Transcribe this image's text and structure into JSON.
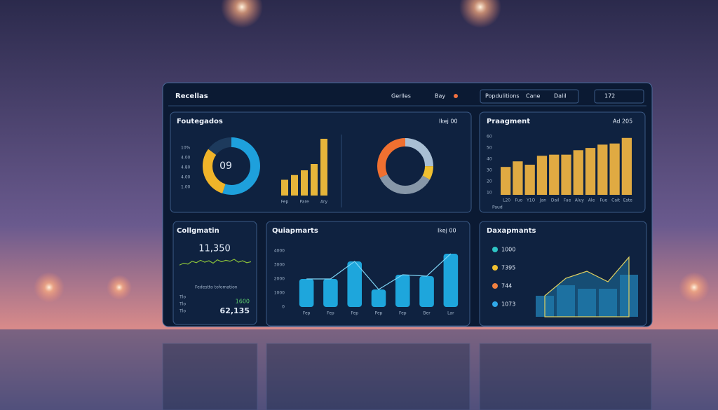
{
  "header": {
    "title": "Recellas",
    "filters": [
      "Gerlles",
      "Bay"
    ],
    "tabs": [
      "Popdulitions",
      "Cane",
      "Dalil"
    ],
    "counter": "172"
  },
  "foutegados": {
    "title": "Foutegados",
    "badge": "Ikej 00",
    "y_labels": [
      "10%",
      "4.00",
      "4.80",
      "4.00",
      "1.00"
    ],
    "donut_label": "09",
    "donut": [
      {
        "color": "#1ea0dc",
        "value": 55
      },
      {
        "color": "#f0b429",
        "value": 30
      },
      {
        "color": "#1d3a5c",
        "value": 15
      }
    ],
    "bars": [
      20,
      26,
      32,
      40,
      72
    ],
    "bar_max": 80,
    "bar_color": "#e6b53a",
    "bar_labels": [
      "Fep",
      "Pare",
      "Ary"
    ],
    "ring": [
      {
        "color": "#a9bfd4",
        "value": 25
      },
      {
        "color": "#f0c030",
        "value": 8
      },
      {
        "color": "#8797a8",
        "value": 35
      },
      {
        "color": "#f07030",
        "value": 32
      }
    ]
  },
  "praagment": {
    "title": "Praagment",
    "badge": "Ad 205",
    "ylim": [
      8,
      62
    ],
    "yticks": [
      60,
      50,
      40,
      30,
      20,
      10
    ],
    "color": "#e0aa42",
    "values": [
      33,
      38,
      35,
      43,
      44,
      44,
      48,
      50,
      53,
      54,
      59
    ],
    "categories": [
      "L20",
      "Fuo",
      "Y1O",
      "Jan",
      "Dail",
      "Fue",
      "Aluy",
      "Ale",
      "Fue",
      "Cait",
      "Este"
    ],
    "footer": "Paud"
  },
  "collgmatin": {
    "title": "Collgmatin",
    "value": "11,350",
    "spark": [
      20,
      24,
      22,
      28,
      25,
      30,
      26,
      29,
      24,
      31,
      27,
      30,
      28,
      32,
      26,
      29,
      25,
      27
    ],
    "subtitle": "Fedestto tofomation",
    "rows": [
      "Tlo",
      "Tlo",
      "Tlo"
    ],
    "accent": "1600",
    "total": "62,135"
  },
  "quiapmarts": {
    "title": "Quiapmarts",
    "badge": "Ikej 00",
    "ylim": [
      0,
      4000
    ],
    "yticks": [
      0,
      1000,
      2000,
      3000,
      4000
    ],
    "color": "#1ea6dc",
    "values": [
      2000,
      2000,
      3250,
      1250,
      2300,
      2200,
      3800
    ],
    "categories": [
      "Fep",
      "Fep",
      "Fep",
      "Pep",
      "Fep",
      "Ber",
      "Lar"
    ]
  },
  "daxapmants": {
    "title": "Daxapmants",
    "legend": [
      {
        "label": "1000",
        "color": "#2ec4c4"
      },
      {
        "label": "7395",
        "color": "#f0c030"
      },
      {
        "label": "744",
        "color": "#f08040"
      },
      {
        "label": "1073",
        "color": "#30a8e8"
      }
    ],
    "ylim": [
      0,
      100
    ],
    "bars": [
      30,
      45,
      40,
      40,
      60
    ],
    "line": [
      30,
      55,
      65,
      50,
      85
    ]
  }
}
